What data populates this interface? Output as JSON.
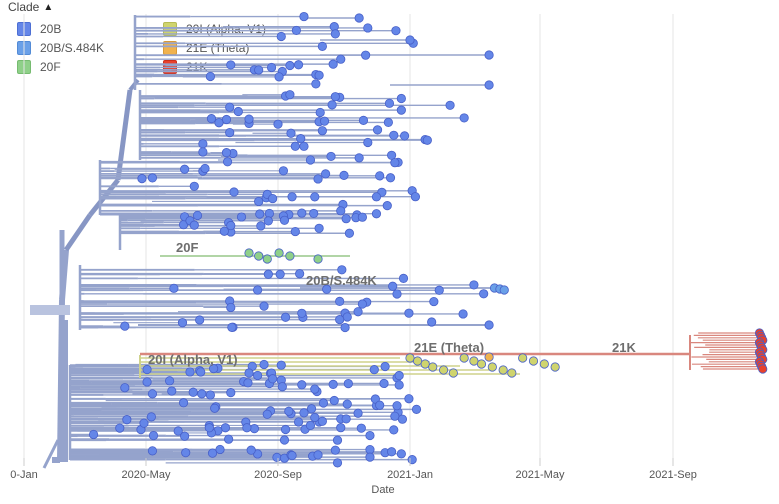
{
  "legend": {
    "title": "Clade",
    "chevron": "chevron-up-icon",
    "items": [
      {
        "label": "20B",
        "color": "#6486e8"
      },
      {
        "label": "20B/S.484K",
        "color": "#6aa0e8"
      },
      {
        "label": "20F",
        "color": "#8fd089"
      },
      {
        "label": "20I (Alpha, V1)",
        "color": "#cfd46e"
      },
      {
        "label": "21E (Theta)",
        "color": "#f0b24e"
      },
      {
        "label": "21K",
        "color": "#e8412c"
      }
    ]
  },
  "chart_data": {
    "type": "scatter",
    "description_type": "time-resolved phylogenetic tree",
    "xlabel": "Date",
    "x_ticks": [
      "0-Jan",
      "2020-May",
      "2020-Sep",
      "2021-Jan",
      "2021-May",
      "2021-Sep"
    ],
    "x_tick_dates": [
      "2020-01-01",
      "2020-05-01",
      "2020-09-01",
      "2021-01-01",
      "2021-05-01",
      "2021-09-01"
    ],
    "xlim": [
      "2020-01-01",
      "2021-11-24"
    ],
    "grid": true,
    "legend_placement": "top-left",
    "clade_labels": [
      "20F",
      "20B/S.484K",
      "20I (Alpha, V1)",
      "21E (Theta)",
      "21K"
    ],
    "series": [
      {
        "name": "20B",
        "color": "#6486e8",
        "approx_tip_count": 420,
        "tip_date_range": [
          "2020-03-01",
          "2021-04-10"
        ]
      },
      {
        "name": "20B/S.484K",
        "color": "#6aa0e8",
        "approx_tip_count": 3,
        "tip_date_range": [
          "2021-03-20",
          "2021-03-30"
        ]
      },
      {
        "name": "20F",
        "color": "#8fd089",
        "approx_tip_count": 8,
        "tip_date_range": [
          "2020-08-01",
          "2020-10-10"
        ]
      },
      {
        "name": "20I (Alpha, V1)",
        "color": "#cfd46e",
        "approx_tip_count": 25,
        "tip_date_range": [
          "2021-01-01",
          "2021-05-20"
        ]
      },
      {
        "name": "21E (Theta)",
        "color": "#f0b24e",
        "approx_tip_count": 1,
        "tip_date_range": [
          "2021-03-15",
          "2021-03-15"
        ]
      },
      {
        "name": "21K",
        "color": "#e8412c",
        "approx_tip_count": 20,
        "tip_date_range": [
          "2021-11-15",
          "2021-11-24"
        ]
      }
    ]
  }
}
